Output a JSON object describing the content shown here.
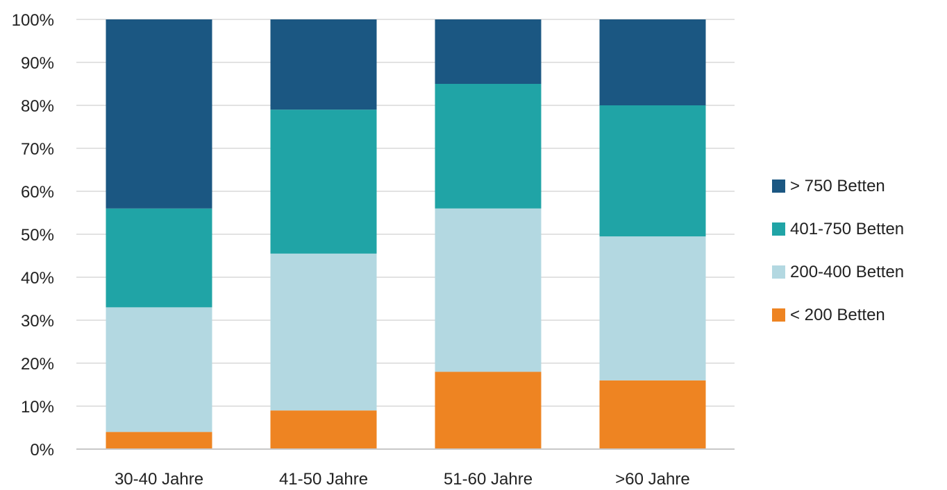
{
  "chart_data": {
    "type": "bar",
    "stacked": true,
    "title": "",
    "xlabel": "",
    "ylabel": "",
    "ylim": [
      0,
      100
    ],
    "y_unit": "%",
    "y_ticks": [
      "0%",
      "10%",
      "20%",
      "30%",
      "40%",
      "50%",
      "60%",
      "70%",
      "80%",
      "90%",
      "100%"
    ],
    "categories": [
      "30-40 Jahre",
      "41-50 Jahre",
      "51-60 Jahre",
      ">60 Jahre"
    ],
    "series": [
      {
        "name": "< 200 Betten",
        "color": "#ee8422",
        "values": [
          4,
          9,
          18,
          16
        ]
      },
      {
        "name": "200-400 Betten",
        "color": "#b3d8e1",
        "values": [
          29,
          36.5,
          38,
          33.5
        ]
      },
      {
        "name": "401-750 Betten",
        "color": "#20a4a6",
        "values": [
          23,
          33.5,
          29,
          30.5
        ]
      },
      {
        "name": "> 750 Betten",
        "color": "#1b5782",
        "values": [
          44,
          21,
          15,
          20
        ]
      }
    ],
    "legend": {
      "position": "right",
      "order": [
        "> 750 Betten",
        "401-750 Betten",
        "200-400 Betten",
        "< 200 Betten"
      ]
    },
    "grid": true
  }
}
